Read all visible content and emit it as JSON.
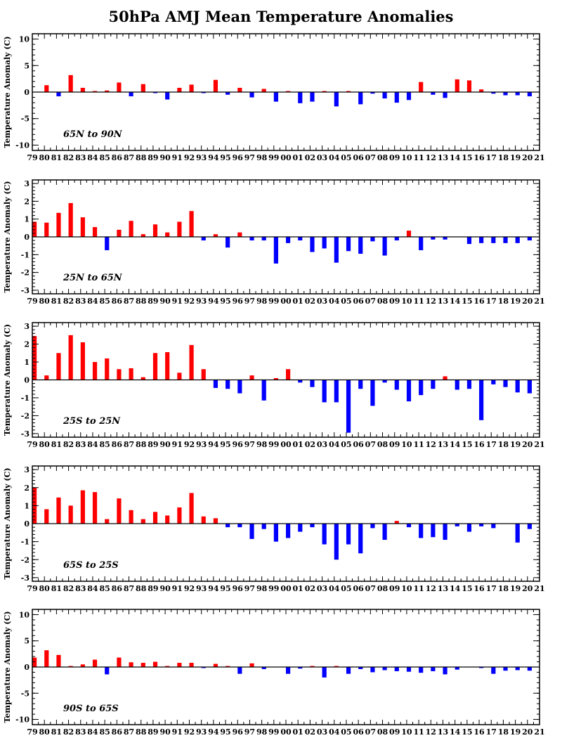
{
  "chart_data": {
    "type": "bar",
    "title": "50hPa AMJ Mean Temperature Anomalies",
    "ylabel": "Temperature Anomaly (C)",
    "categories": [
      "79",
      "80",
      "81",
      "82",
      "83",
      "84",
      "85",
      "86",
      "87",
      "88",
      "89",
      "90",
      "91",
      "92",
      "93",
      "94",
      "95",
      "96",
      "97",
      "98",
      "99",
      "00",
      "01",
      "02",
      "03",
      "04",
      "05",
      "06",
      "07",
      "08",
      "09",
      "10",
      "11",
      "12",
      "13",
      "14",
      "15",
      "16",
      "17",
      "18",
      "19",
      "20",
      "21"
    ],
    "colors": {
      "positive": "#ff0000",
      "negative": "#0000ff"
    },
    "panels": [
      {
        "label": "65N to 90N",
        "ylim": [
          -11,
          11
        ],
        "yticks": [
          -10,
          -5,
          0,
          5,
          10
        ],
        "values": [
          0,
          1.3,
          -0.8,
          3.2,
          0.8,
          0.2,
          0.3,
          1.8,
          -0.8,
          1.5,
          -0.2,
          -1.4,
          0.8,
          1.4,
          -0.2,
          2.3,
          -0.5,
          0.8,
          -1.0,
          0.6,
          -1.8,
          0.2,
          -2.1,
          -1.8,
          0.2,
          -2.7,
          0.2,
          -2.3,
          -0.3,
          -1.2,
          -2.0,
          -1.5,
          1.9,
          -0.5,
          -1.1,
          2.4,
          2.2,
          0.5,
          -0.3,
          -0.6,
          -0.6,
          -0.8,
          0
        ]
      },
      {
        "label": "25N to 65N",
        "ylim": [
          -3.2,
          3.2
        ],
        "yticks": [
          -3,
          -2,
          -1,
          0,
          1,
          2,
          3
        ],
        "values": [
          0.85,
          0.8,
          1.35,
          1.9,
          1.1,
          0.55,
          -0.75,
          0.4,
          0.9,
          0.15,
          0.7,
          0.25,
          0.85,
          1.45,
          -0.2,
          0.15,
          -0.6,
          0.25,
          -0.2,
          -0.2,
          -1.5,
          -0.35,
          -0.2,
          -0.85,
          -0.65,
          -1.45,
          -0.8,
          -0.95,
          -0.25,
          -1.05,
          -0.2,
          0.35,
          -0.75,
          -0.15,
          -0.15,
          0,
          -0.4,
          -0.35,
          -0.35,
          -0.35,
          -0.35,
          -0.2,
          0
        ]
      },
      {
        "label": "25S to 25N",
        "ylim": [
          -3.2,
          3.2
        ],
        "yticks": [
          -3,
          -2,
          -1,
          0,
          1,
          2,
          3
        ],
        "values": [
          2.45,
          0.25,
          1.5,
          2.5,
          2.1,
          1.0,
          1.2,
          0.6,
          0.65,
          0.15,
          1.5,
          1.55,
          0.4,
          1.95,
          0.6,
          -0.45,
          -0.5,
          -0.75,
          0.25,
          -1.15,
          0.1,
          0.6,
          -0.15,
          -0.4,
          -1.25,
          -1.25,
          -2.95,
          -0.5,
          -1.45,
          -0.15,
          -0.55,
          -1.2,
          -0.85,
          -0.5,
          0.2,
          -0.55,
          -0.5,
          -2.25,
          -0.25,
          -0.4,
          -0.7,
          -0.75,
          0
        ]
      },
      {
        "label": "65S to 25S",
        "ylim": [
          -3.2,
          3.2
        ],
        "yticks": [
          -3,
          -2,
          -1,
          0,
          1,
          2,
          3
        ],
        "values": [
          2.0,
          0.8,
          1.45,
          1.0,
          1.85,
          1.75,
          0.25,
          1.4,
          0.75,
          0.25,
          0.65,
          0.45,
          0.9,
          1.7,
          0.4,
          0.3,
          -0.2,
          -0.2,
          -0.85,
          -0.3,
          -1.0,
          -0.8,
          -0.45,
          -0.2,
          -1.15,
          -2.0,
          -1.15,
          -1.65,
          -0.25,
          -0.9,
          0.15,
          -0.2,
          -0.8,
          -0.75,
          -0.9,
          -0.15,
          -0.45,
          -0.15,
          -0.25,
          0,
          -1.05,
          -0.3,
          0
        ]
      },
      {
        "label": "90S to 65S",
        "ylim": [
          -11,
          11
        ],
        "yticks": [
          -10,
          -5,
          0,
          5,
          10
        ],
        "values": [
          1.8,
          3.2,
          2.3,
          0.2,
          0.5,
          1.4,
          -1.4,
          1.8,
          0.9,
          0.8,
          1.0,
          0.2,
          0.8,
          0.8,
          -0.2,
          0.6,
          0.2,
          -1.3,
          0.7,
          -0.4,
          0,
          -1.3,
          -0.3,
          0.2,
          -2.0,
          0.2,
          -1.3,
          -0.4,
          -1.0,
          -0.6,
          -0.8,
          -0.9,
          -1.1,
          -0.8,
          -1.4,
          -0.5,
          0,
          -0.2,
          -1.3,
          -0.7,
          -0.6,
          -0.7,
          0
        ]
      }
    ]
  }
}
